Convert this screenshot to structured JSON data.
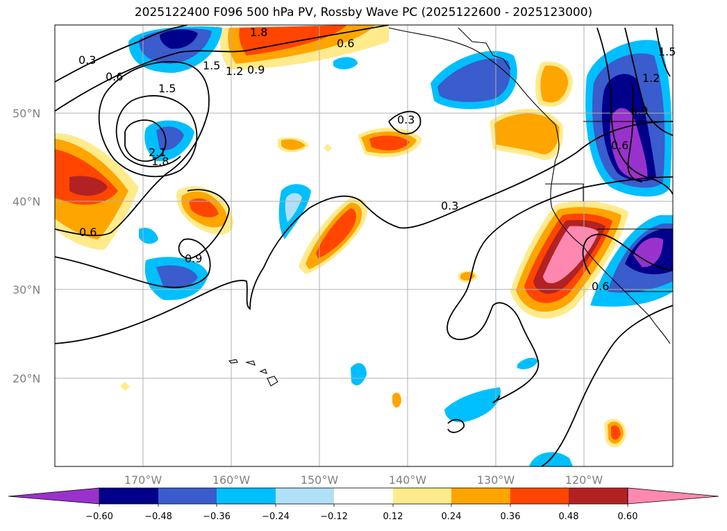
{
  "title": "2025122400 F096 500 hPa PV, Rossby Wave PC (2025122600 - 2025123000)",
  "lat_labels": [
    "50°N",
    "40°N",
    "30°N",
    "20°N"
  ],
  "lon_labels": [
    "170°W",
    "160°W",
    "150°W",
    "140°W",
    "130°W",
    "120°W"
  ],
  "colorbar": {
    "ticks": [
      "−0.60",
      "−0.48",
      "−0.36",
      "−0.24",
      "−0.12",
      "0.12",
      "0.24",
      "0.36",
      "0.48",
      "0.60"
    ],
    "colors": [
      "#9932cc",
      "#00008b",
      "#3a5ccc",
      "#00bfff",
      "#b0e0f8",
      "#ffffff",
      "#ffeb8c",
      "#ffa500",
      "#ff4500",
      "#b22222",
      "#ff88b0"
    ]
  },
  "contour_labels": [
    "0.3",
    "0.6",
    "1.5",
    "1.5",
    "1.8",
    "2.1",
    "0.6",
    "0.9",
    "1.2",
    "1.8",
    "0.6",
    "0.3",
    "0.3",
    "0.9",
    "0.6",
    "1.5",
    "1.2",
    "0.9",
    "0.6"
  ]
}
